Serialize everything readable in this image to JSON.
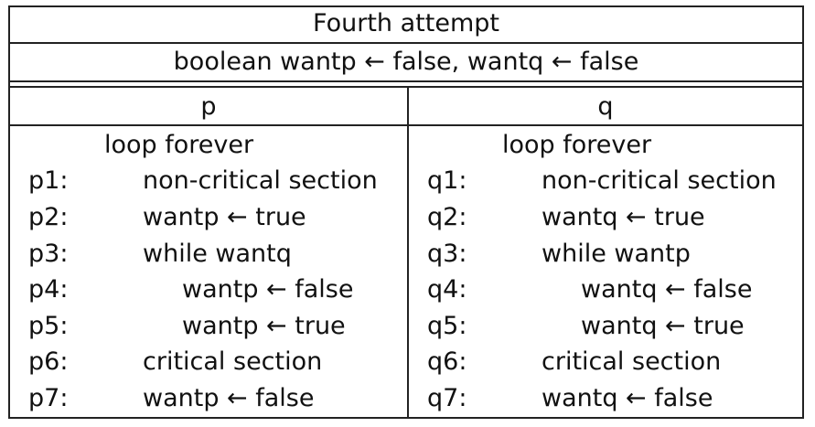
{
  "title": "Fourth attempt",
  "declaration": "boolean wantp ← false, wantq ← false",
  "processes": [
    {
      "name": "p",
      "header_line": "loop forever",
      "lines": [
        {
          "label": "p1:",
          "code": "non-critical section",
          "indent": 1
        },
        {
          "label": "p2:",
          "code": "wantp ← true",
          "indent": 1
        },
        {
          "label": "p3:",
          "code": "while wantq",
          "indent": 1
        },
        {
          "label": "p4:",
          "code": "wantp ← false",
          "indent": 2
        },
        {
          "label": "p5:",
          "code": "wantp ← true",
          "indent": 2
        },
        {
          "label": "p6:",
          "code": "critical section",
          "indent": 1
        },
        {
          "label": "p7:",
          "code": "wantp ← false",
          "indent": 1
        }
      ]
    },
    {
      "name": "q",
      "header_line": "loop forever",
      "lines": [
        {
          "label": "q1:",
          "code": "non-critical section",
          "indent": 1
        },
        {
          "label": "q2:",
          "code": "wantq ← true",
          "indent": 1
        },
        {
          "label": "q3:",
          "code": "while wantp",
          "indent": 1
        },
        {
          "label": "q4:",
          "code": "wantq ← false",
          "indent": 2
        },
        {
          "label": "q5:",
          "code": "wantq ← true",
          "indent": 2
        },
        {
          "label": "q6:",
          "code": "critical section",
          "indent": 1
        },
        {
          "label": "q7:",
          "code": "wantq ← false",
          "indent": 1
        }
      ]
    }
  ]
}
